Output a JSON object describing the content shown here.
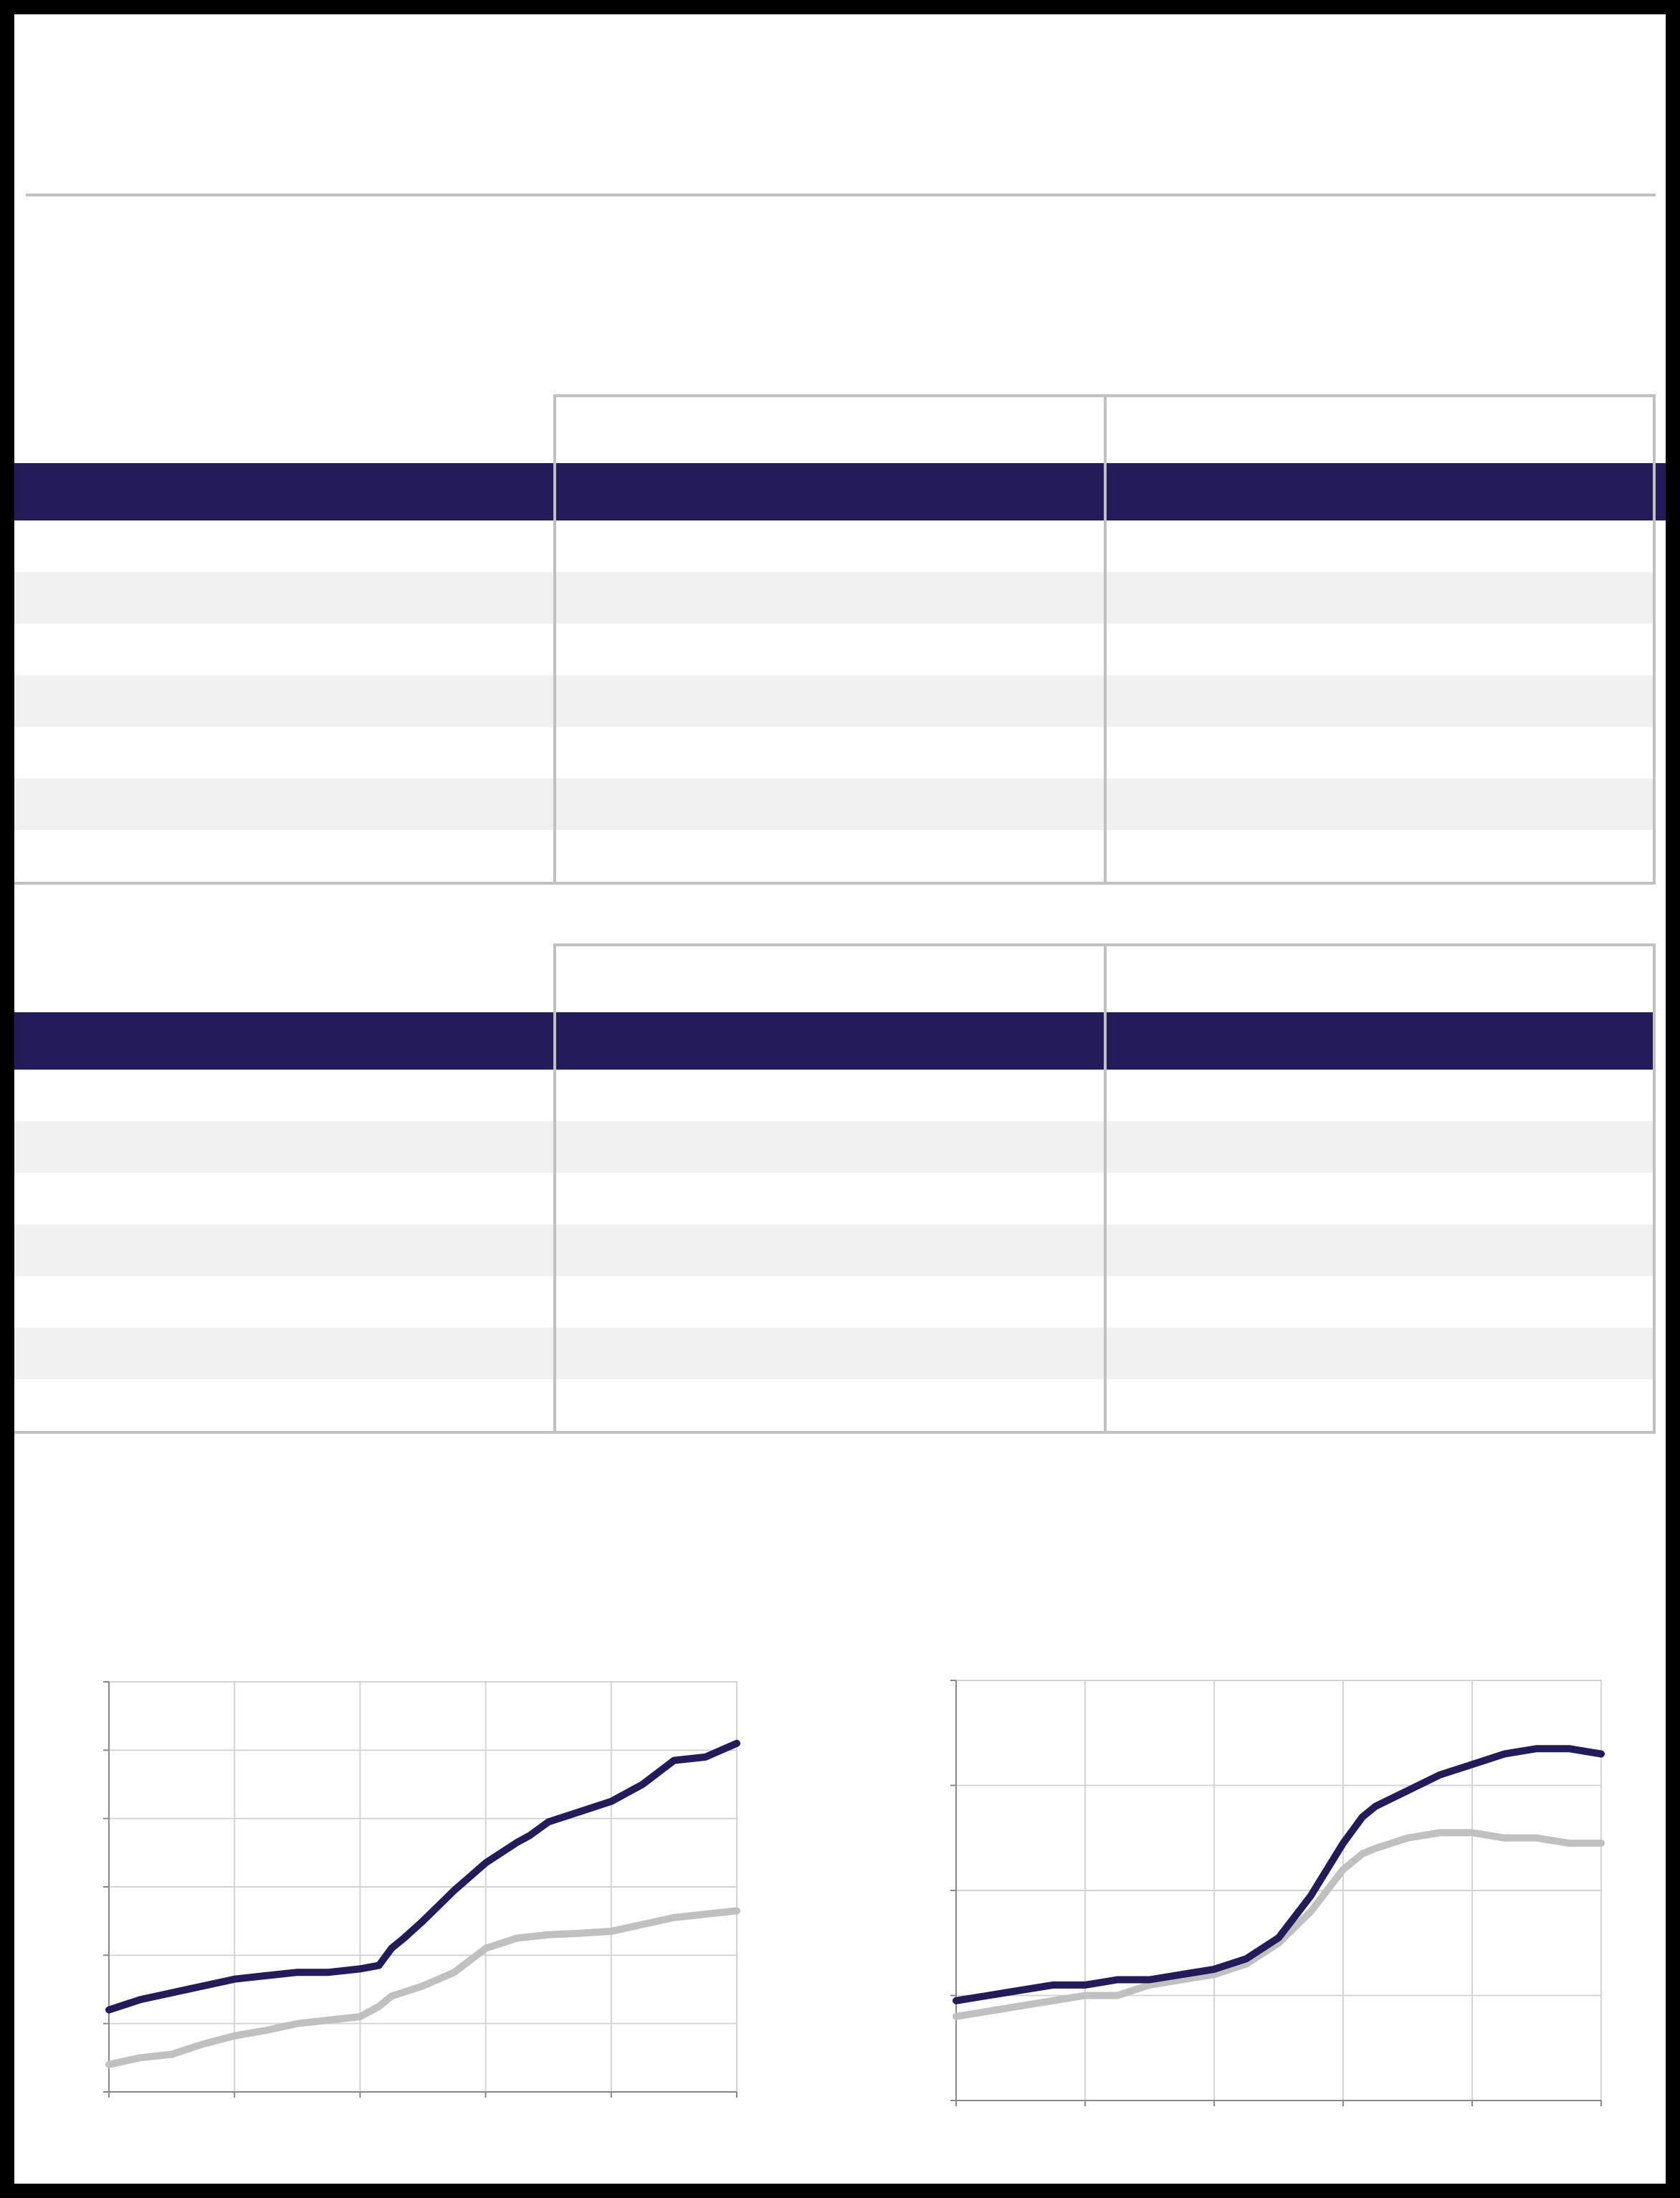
{
  "page": {
    "title": "",
    "subtitle": ""
  },
  "colors": {
    "frame": "#000000",
    "rule": "#c0c0c0",
    "header_band": "#231c5a",
    "row_shade": "#f0f0f0",
    "series_dark": "#231c5a",
    "series_light": "#c0c0c0",
    "grid": "#d4d4d4"
  },
  "tables": [
    {
      "column_top_labels": [
        "",
        ""
      ],
      "header": [
        "",
        "",
        ""
      ],
      "rows": [
        [
          "",
          "",
          ""
        ],
        [
          "",
          "",
          ""
        ],
        [
          "",
          "",
          ""
        ],
        [
          "",
          "",
          ""
        ],
        [
          "",
          "",
          ""
        ],
        [
          "",
          "",
          ""
        ],
        [
          "",
          "",
          ""
        ]
      ]
    },
    {
      "column_top_labels": [
        "",
        ""
      ],
      "header": [
        "",
        "",
        ""
      ],
      "rows": [
        [
          "",
          "",
          ""
        ],
        [
          "",
          "",
          ""
        ],
        [
          "",
          "",
          ""
        ],
        [
          "",
          "",
          ""
        ],
        [
          "",
          "",
          ""
        ],
        [
          "",
          "",
          ""
        ],
        [
          "",
          "",
          ""
        ]
      ]
    }
  ],
  "chart_data": [
    {
      "type": "line",
      "title": "",
      "xlabel": "",
      "ylabel": "",
      "xlim": [
        0,
        100
      ],
      "ylim": [
        0,
        6
      ],
      "x_gridlines": 5,
      "y_gridlines": 6,
      "grid": true,
      "legend": "none",
      "series": [
        {
          "color": "#231c5a",
          "x": [
            0,
            5,
            10,
            15,
            20,
            25,
            30,
            35,
            40,
            43,
            45,
            47,
            50,
            55,
            60,
            65,
            67,
            70,
            75,
            80,
            83,
            85,
            90,
            95,
            100
          ],
          "values": [
            1.2,
            1.35,
            1.45,
            1.55,
            1.65,
            1.7,
            1.75,
            1.75,
            1.8,
            1.85,
            2.1,
            2.25,
            2.5,
            2.95,
            3.35,
            3.65,
            3.75,
            3.95,
            4.1,
            4.25,
            4.4,
            4.5,
            4.85,
            4.9,
            5.1
          ]
        },
        {
          "color": "#c0c0c0",
          "x": [
            0,
            5,
            10,
            15,
            20,
            25,
            30,
            35,
            40,
            43,
            45,
            50,
            55,
            60,
            65,
            70,
            75,
            80,
            85,
            90,
            95,
            100
          ],
          "values": [
            0.4,
            0.5,
            0.55,
            0.7,
            0.82,
            0.9,
            1.0,
            1.05,
            1.1,
            1.25,
            1.4,
            1.55,
            1.75,
            2.1,
            2.25,
            2.3,
            2.32,
            2.35,
            2.45,
            2.55,
            2.6,
            2.65
          ]
        }
      ]
    },
    {
      "type": "line",
      "title": "",
      "xlabel": "",
      "ylabel": "",
      "xlim": [
        0,
        100
      ],
      "ylim": [
        0,
        4
      ],
      "x_gridlines": 5,
      "y_gridlines": 4,
      "grid": true,
      "legend": "none",
      "series": [
        {
          "color": "#231c5a",
          "x": [
            0,
            5,
            10,
            15,
            20,
            25,
            30,
            35,
            40,
            45,
            50,
            55,
            60,
            63,
            65,
            70,
            75,
            80,
            85,
            90,
            95,
            100
          ],
          "values": [
            0.95,
            1.0,
            1.05,
            1.1,
            1.1,
            1.15,
            1.15,
            1.2,
            1.25,
            1.35,
            1.55,
            1.95,
            2.45,
            2.7,
            2.8,
            2.95,
            3.1,
            3.2,
            3.3,
            3.35,
            3.35,
            3.3
          ]
        },
        {
          "color": "#c0c0c0",
          "x": [
            0,
            5,
            10,
            15,
            20,
            25,
            30,
            35,
            40,
            45,
            50,
            55,
            60,
            63,
            65,
            70,
            75,
            80,
            85,
            90,
            95,
            100
          ],
          "values": [
            0.8,
            0.85,
            0.9,
            0.95,
            1.0,
            1.0,
            1.1,
            1.15,
            1.2,
            1.3,
            1.5,
            1.8,
            2.2,
            2.35,
            2.4,
            2.5,
            2.55,
            2.55,
            2.5,
            2.5,
            2.45,
            2.45
          ]
        }
      ]
    }
  ]
}
